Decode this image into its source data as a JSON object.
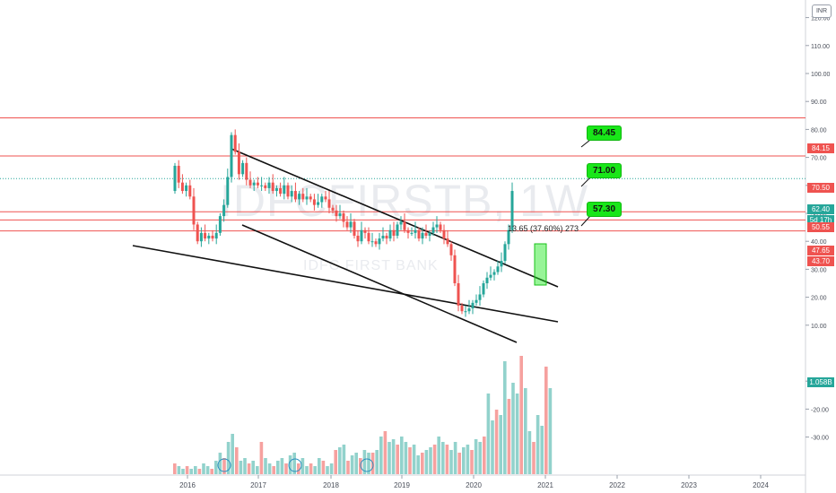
{
  "header": {
    "currency": "INR"
  },
  "watermark": {
    "symbol": "IDFCFIRSTB, 1W",
    "name": "IDFC FIRST BANK"
  },
  "measure": {
    "text": "13.65 (37.60%) 273"
  },
  "targets": [
    "84.45",
    "71.00",
    "57.30"
  ],
  "price_axis_labels": [
    "130.00",
    "120.00",
    "110.00",
    "100.00",
    "90.00",
    "80.00",
    "70.00",
    "60.00",
    "50.00",
    "40.00",
    "30.00",
    "20.00",
    "10.00",
    "-10.00",
    "-20.00",
    "-30.00"
  ],
  "price_tags": [
    {
      "text": "84.15",
      "color": "#ef5350"
    },
    {
      "text": "70.50",
      "color": "#ef5350"
    },
    {
      "text": "62.40",
      "color": "#26a69a"
    },
    {
      "text": "5d 17h",
      "color": "#26a69a"
    },
    {
      "text": "50.55",
      "color": "#ef5350"
    },
    {
      "text": "47.65",
      "color": "#ef5350"
    },
    {
      "text": "43.70",
      "color": "#ef5350"
    },
    {
      "text": "1.058B",
      "color": "#26a69a"
    }
  ],
  "time_axis_labels": [
    "2016",
    "2017",
    "2018",
    "2019",
    "2020",
    "2021",
    "2022",
    "2023",
    "2024"
  ],
  "colors": {
    "up": "#26a69a",
    "down": "#ef5350",
    "hline": "#ef5350",
    "target_bg": "#19e619"
  },
  "chart_data": {
    "type": "candlestick",
    "symbol": "IDFCFIRSTB",
    "interval": "1W",
    "horizontal_levels": [
      84.15,
      70.5,
      50.55,
      47.65,
      43.7
    ],
    "last_price": 62.4,
    "y_ticks": [
      130,
      120,
      110,
      100,
      90,
      80,
      70,
      60,
      50,
      40,
      30,
      20,
      10
    ],
    "targets": [
      84.45,
      71.0,
      57.3
    ]
  }
}
